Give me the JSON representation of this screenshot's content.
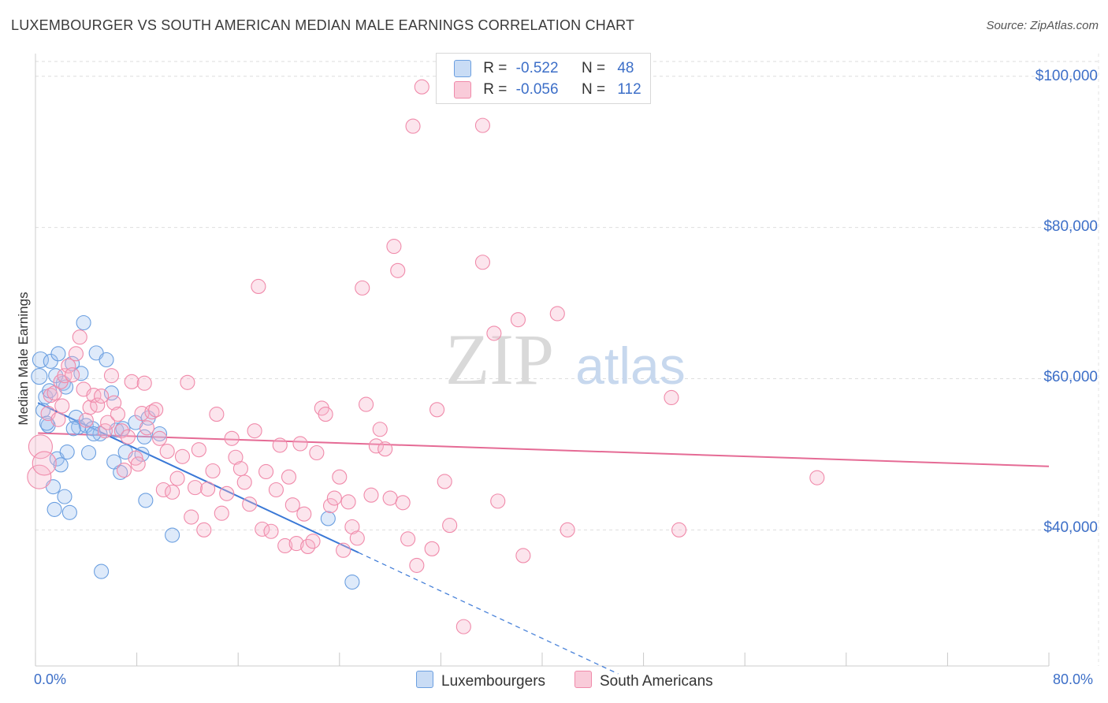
{
  "title": "LUXEMBOURGER VS SOUTH AMERICAN MEDIAN MALE EARNINGS CORRELATION CHART",
  "source": "Source: ZipAtlas.com",
  "watermark": {
    "zip": "ZIP",
    "atlas": "atlas"
  },
  "legend": {
    "r_label": "R =",
    "n_label": "N =",
    "rows": [
      {
        "r": "-0.522",
        "n": "48",
        "color": "#6b9fe0"
      },
      {
        "r": "-0.056",
        "n": "112",
        "color": "#f08aaa"
      }
    ]
  },
  "bottom_legend": [
    "Luxembourgers",
    "South Americans"
  ],
  "chart_data": {
    "type": "scatter",
    "title": "LUXEMBOURGER VS SOUTH AMERICAN MEDIAN MALE EARNINGS CORRELATION CHART",
    "xlabel": "",
    "ylabel": "Median Male Earnings",
    "xlim": [
      0,
      80
    ],
    "ylim": [
      22000,
      103000
    ],
    "x_tick_labels": [
      "0.0%",
      "80.0%"
    ],
    "y_ticks": [
      40000,
      60000,
      80000,
      100000
    ],
    "y_tick_labels": [
      "$40,000",
      "$60,000",
      "$80,000",
      "$100,000"
    ],
    "grid": true,
    "series": [
      {
        "name": "Luxembourgers",
        "color": "#6b9fe0",
        "trend": {
          "x0": 0.2,
          "y0": 56800,
          "x1": 25.5,
          "y1": 37000,
          "dash_to_x": 46.0
        },
        "points": [
          [
            0.3,
            60300
          ],
          [
            0.4,
            62500
          ],
          [
            0.6,
            55800
          ],
          [
            0.8,
            57600
          ],
          [
            1.0,
            53800
          ],
          [
            1.2,
            62300
          ],
          [
            1.4,
            45700
          ],
          [
            1.5,
            42700
          ],
          [
            1.7,
            49400
          ],
          [
            1.8,
            63300
          ],
          [
            2.0,
            48600
          ],
          [
            2.2,
            59400
          ],
          [
            2.3,
            44400
          ],
          [
            2.4,
            58900
          ],
          [
            2.5,
            50300
          ],
          [
            2.7,
            42300
          ],
          [
            2.9,
            62000
          ],
          [
            3.2,
            54900
          ],
          [
            3.4,
            53600
          ],
          [
            3.6,
            60700
          ],
          [
            3.8,
            67400
          ],
          [
            4.0,
            53800
          ],
          [
            4.2,
            50200
          ],
          [
            4.5,
            53400
          ],
          [
            4.8,
            63400
          ],
          [
            5.1,
            52700
          ],
          [
            5.2,
            34500
          ],
          [
            5.6,
            62500
          ],
          [
            6.0,
            58100
          ],
          [
            6.4,
            53200
          ],
          [
            6.7,
            47600
          ],
          [
            6.9,
            53400
          ],
          [
            7.1,
            50300
          ],
          [
            7.9,
            54200
          ],
          [
            8.4,
            50000
          ],
          [
            8.6,
            52300
          ],
          [
            8.7,
            43900
          ],
          [
            8.9,
            54800
          ],
          [
            9.8,
            52700
          ],
          [
            10.8,
            39300
          ],
          [
            23.1,
            41500
          ],
          [
            25.0,
            33100
          ],
          [
            1.1,
            58400
          ],
          [
            3.0,
            53400
          ],
          [
            0.9,
            54100
          ],
          [
            1.6,
            60400
          ],
          [
            4.6,
            52700
          ],
          [
            6.2,
            49000
          ]
        ]
      },
      {
        "name": "South Americans",
        "color": "#f08aaa",
        "trend": {
          "x0": 0.2,
          "y0": 52800,
          "x1": 80.0,
          "y1": 48400
        },
        "points": [
          [
            0.3,
            47000
          ],
          [
            0.4,
            51000
          ],
          [
            1.0,
            55400
          ],
          [
            1.2,
            57800
          ],
          [
            1.5,
            58100
          ],
          [
            1.8,
            54600
          ],
          [
            2.0,
            59600
          ],
          [
            2.3,
            60400
          ],
          [
            2.6,
            61700
          ],
          [
            2.9,
            60500
          ],
          [
            3.2,
            63300
          ],
          [
            3.5,
            65500
          ],
          [
            3.8,
            58600
          ],
          [
            4.0,
            54500
          ],
          [
            4.3,
            56200
          ],
          [
            4.6,
            57800
          ],
          [
            4.9,
            56500
          ],
          [
            5.2,
            57700
          ],
          [
            5.5,
            53100
          ],
          [
            5.7,
            54200
          ],
          [
            6.0,
            60400
          ],
          [
            6.2,
            56800
          ],
          [
            6.5,
            55300
          ],
          [
            6.8,
            53100
          ],
          [
            7.0,
            47900
          ],
          [
            7.3,
            52300
          ],
          [
            7.6,
            59600
          ],
          [
            7.9,
            49500
          ],
          [
            8.1,
            48700
          ],
          [
            8.4,
            55400
          ],
          [
            8.6,
            59400
          ],
          [
            8.8,
            53500
          ],
          [
            9.2,
            55600
          ],
          [
            9.5,
            55900
          ],
          [
            9.8,
            52100
          ],
          [
            10.1,
            45300
          ],
          [
            10.4,
            50400
          ],
          [
            10.8,
            45000
          ],
          [
            11.2,
            46800
          ],
          [
            11.6,
            49700
          ],
          [
            12.0,
            59500
          ],
          [
            12.3,
            41700
          ],
          [
            12.6,
            45600
          ],
          [
            12.9,
            50600
          ],
          [
            13.3,
            40000
          ],
          [
            13.6,
            45400
          ],
          [
            14.0,
            47800
          ],
          [
            14.3,
            55300
          ],
          [
            14.7,
            42200
          ],
          [
            15.1,
            44800
          ],
          [
            15.5,
            52100
          ],
          [
            15.8,
            49600
          ],
          [
            16.2,
            48100
          ],
          [
            16.5,
            46300
          ],
          [
            16.9,
            43400
          ],
          [
            17.3,
            53100
          ],
          [
            17.6,
            72200
          ],
          [
            17.9,
            40100
          ],
          [
            18.2,
            47700
          ],
          [
            18.6,
            39800
          ],
          [
            19.0,
            45300
          ],
          [
            19.3,
            51200
          ],
          [
            19.7,
            37900
          ],
          [
            20.0,
            47000
          ],
          [
            20.3,
            43300
          ],
          [
            20.6,
            38200
          ],
          [
            20.9,
            51400
          ],
          [
            21.2,
            42100
          ],
          [
            21.5,
            37800
          ],
          [
            21.9,
            38500
          ],
          [
            22.2,
            50200
          ],
          [
            22.6,
            56100
          ],
          [
            22.9,
            55300
          ],
          [
            23.3,
            43200
          ],
          [
            23.6,
            44200
          ],
          [
            24.0,
            47000
          ],
          [
            24.3,
            37300
          ],
          [
            24.7,
            43700
          ],
          [
            25.0,
            40400
          ],
          [
            25.4,
            38900
          ],
          [
            25.8,
            72000
          ],
          [
            26.1,
            56600
          ],
          [
            26.5,
            44600
          ],
          [
            26.9,
            51100
          ],
          [
            27.2,
            53300
          ],
          [
            27.6,
            50700
          ],
          [
            28.0,
            44200
          ],
          [
            28.3,
            77500
          ],
          [
            28.6,
            74300
          ],
          [
            29.0,
            43600
          ],
          [
            29.4,
            38800
          ],
          [
            29.8,
            93400
          ],
          [
            30.1,
            35300
          ],
          [
            30.5,
            98600
          ],
          [
            31.3,
            37500
          ],
          [
            31.7,
            55900
          ],
          [
            32.3,
            46400
          ],
          [
            32.7,
            40600
          ],
          [
            33.8,
            27200
          ],
          [
            35.3,
            93500
          ],
          [
            35.3,
            75400
          ],
          [
            36.2,
            66000
          ],
          [
            36.5,
            43800
          ],
          [
            38.1,
            67800
          ],
          [
            38.5,
            36600
          ],
          [
            41.2,
            68600
          ],
          [
            42.0,
            40000
          ],
          [
            50.2,
            57500
          ],
          [
            50.8,
            40000
          ],
          [
            61.7,
            46900
          ],
          [
            0.7,
            48800
          ],
          [
            2.1,
            56400
          ]
        ]
      }
    ]
  }
}
